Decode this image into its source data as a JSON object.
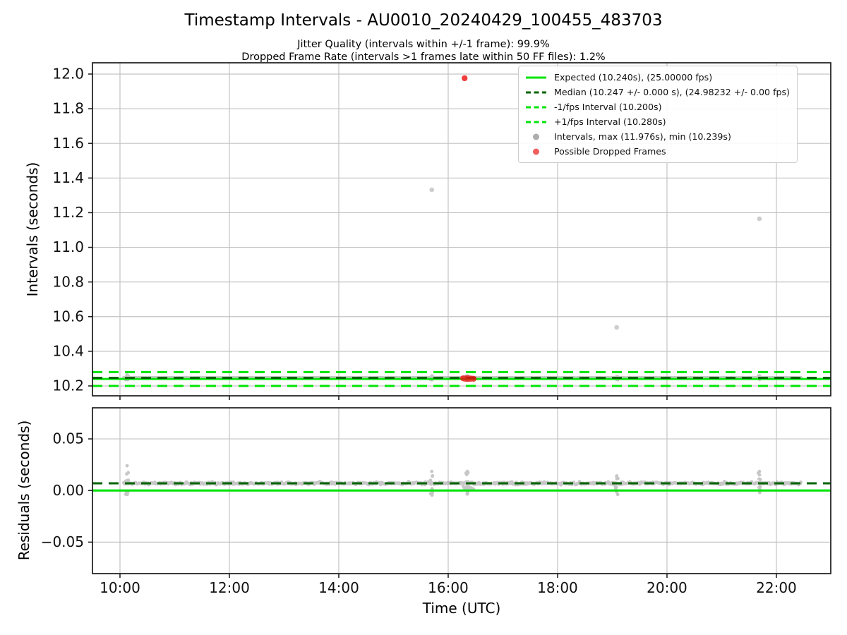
{
  "header": {
    "title": "Timestamp Intervals - AU0010_20240429_100455_483703",
    "subtitle_line1": "Jitter Quality (intervals within +/-1 frame): 99.9%",
    "subtitle_line2": "Dropped Frame Rate (intervals >1 frames late within 50 FF files): 1.2%"
  },
  "colors": {
    "bright_green": "#00e405",
    "dark_green": "#006400",
    "gray_point": "#999999",
    "red_point": "#ec1212",
    "grid": "#c3c3c3",
    "spine": "#1a1a1a",
    "tick_text": "#111111"
  },
  "legend": {
    "items": [
      {
        "swatch": "line-solid-bright",
        "label": "Expected (10.240s), (25.00000 fps)"
      },
      {
        "swatch": "line-dashed-dark",
        "label": "Median (10.247 +/- 0.000 s), (24.98232 +/- 0.00 fps)"
      },
      {
        "swatch": "line-dashed-bright",
        "label": "-1/fps Interval (10.200s)"
      },
      {
        "swatch": "line-dashed-bright",
        "label": "+1/fps Interval (10.280s)"
      },
      {
        "swatch": "dot-gray",
        "label": "Intervals, max (11.976s), min (10.239s)"
      },
      {
        "swatch": "dot-red",
        "label": "Possible Dropped Frames"
      }
    ]
  },
  "chart_data": [
    {
      "id": "intervals",
      "type": "scatter",
      "title": "Timestamp Intervals - AU0010_20240429_100455_483703",
      "ylabel": "Intervals (seconds)",
      "xlabel": "",
      "grid": true,
      "legend_position": "upper right",
      "xlim": [
        9.497,
        22.994
      ],
      "ylim": [
        10.143,
        12.065
      ],
      "xticks": [
        {
          "v": 10,
          "label": "10:00"
        },
        {
          "v": 12,
          "label": "12:00"
        },
        {
          "v": 14,
          "label": "14:00"
        },
        {
          "v": 16,
          "label": "16:00"
        },
        {
          "v": 18,
          "label": "18:00"
        },
        {
          "v": 20,
          "label": "20:00"
        },
        {
          "v": 22,
          "label": "22:00"
        }
      ],
      "x_tick_labels_visible": false,
      "yticks": [
        {
          "v": 10.2,
          "label": "10.2"
        },
        {
          "v": 10.4,
          "label": "10.4"
        },
        {
          "v": 10.6,
          "label": "10.6"
        },
        {
          "v": 10.8,
          "label": "10.8"
        },
        {
          "v": 11.0,
          "label": "11.0"
        },
        {
          "v": 11.2,
          "label": "11.2"
        },
        {
          "v": 11.4,
          "label": "11.4"
        },
        {
          "v": 11.6,
          "label": "11.6"
        },
        {
          "v": 11.8,
          "label": "11.8"
        },
        {
          "v": 12.0,
          "label": "12.0"
        }
      ],
      "hlines": [
        {
          "name": "expected",
          "y": 10.24,
          "style": "solid",
          "color_key": "bright_green",
          "width": 3
        },
        {
          "name": "median",
          "y": 10.247,
          "style": "dashed",
          "color_key": "dark_green",
          "width": 3
        },
        {
          "name": "minus_1fps",
          "y": 10.2,
          "style": "dashed",
          "color_key": "bright_green",
          "width": 3
        },
        {
          "name": "plus_1fps",
          "y": 10.28,
          "style": "dashed",
          "color_key": "bright_green",
          "width": 3
        }
      ],
      "series": {
        "expected_interval_s": 10.24,
        "median_interval_s": 10.247,
        "max_interval_s": 11.976,
        "min_interval_s": 10.239,
        "band": {
          "t_start": 10.07,
          "t_end": 22.45,
          "n": 760,
          "center": 10.247,
          "jitter": 0.0018,
          "burst_times": [
            10.13,
            15.7,
            16.35,
            19.08,
            21.69
          ],
          "burst_spread": 0.011,
          "burst_n": 10
        },
        "extra_gray_points": [
          [
            10.13,
            10.264
          ],
          [
            10.135,
            10.2362
          ],
          [
            15.7,
            10.2585
          ],
          [
            15.705,
            10.2355
          ],
          [
            16.35,
            10.2585
          ],
          [
            16.345,
            10.237
          ],
          [
            19.08,
            10.254
          ],
          [
            21.69,
            10.2585
          ],
          [
            21.692,
            10.2551
          ],
          [
            21.695,
            10.238
          ]
        ],
        "gray_outliers": [
          [
            15.7,
            11.332
          ],
          [
            19.08,
            10.538
          ],
          [
            21.69,
            11.165
          ]
        ],
        "red_outlier": [
          16.3,
          11.976
        ],
        "red_cluster": {
          "t_start": 16.27,
          "t_end": 16.47,
          "center": 10.2425,
          "spread": 0.003,
          "n": 14
        }
      }
    },
    {
      "id": "residuals",
      "type": "scatter",
      "ylabel": "Residuals (seconds)",
      "xlabel": "Time (UTC)",
      "grid": true,
      "xlim": [
        9.497,
        22.994
      ],
      "ylim": [
        -0.0805,
        0.0801
      ],
      "xticks": [
        {
          "v": 10,
          "label": "10:00"
        },
        {
          "v": 12,
          "label": "12:00"
        },
        {
          "v": 14,
          "label": "14:00"
        },
        {
          "v": 16,
          "label": "16:00"
        },
        {
          "v": 18,
          "label": "18:00"
        },
        {
          "v": 20,
          "label": "20:00"
        },
        {
          "v": 22,
          "label": "22:00"
        }
      ],
      "x_tick_labels_visible": true,
      "yticks": [
        {
          "v": -0.05,
          "label": "−0.05"
        },
        {
          "v": 0.0,
          "label": "0.00"
        },
        {
          "v": 0.05,
          "label": "0.05"
        }
      ],
      "hlines": [
        {
          "name": "expected_zero",
          "y": 0.0,
          "style": "solid",
          "color_key": "bright_green",
          "width": 3.2
        },
        {
          "name": "median_residual",
          "y": 0.007,
          "style": "dashed",
          "color_key": "dark_green",
          "width": 3
        }
      ],
      "series": {
        "derived_from": "intervals band minus expected interval (10.240 s)",
        "residual_peak_point": [
          10.13,
          0.023
        ]
      }
    }
  ]
}
